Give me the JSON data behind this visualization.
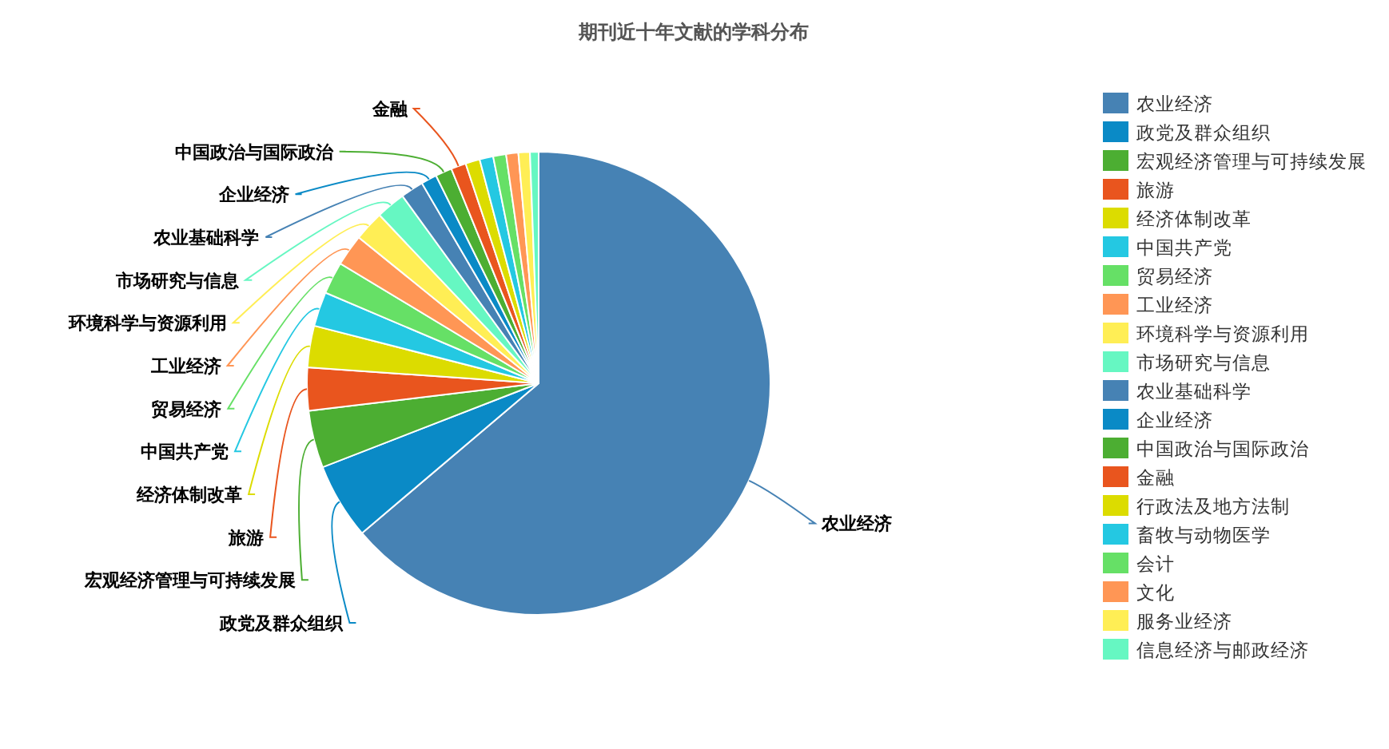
{
  "chart_data": {
    "type": "pie",
    "title": "期刊近十年文献的学科分布",
    "categories": [
      "农业经济",
      "政党及群众组织",
      "宏观经济管理与可持续发展",
      "旅游",
      "经济体制改革",
      "中国共产党",
      "贸易经济",
      "工业经济",
      "环境科学与资源利用",
      "市场研究与信息",
      "农业基础科学",
      "企业经济",
      "中国政治与国际政治",
      "金融",
      "行政法及地方法制",
      "畜牧与动物医学",
      "会计",
      "文化",
      "服务业经济",
      "信息经济与邮政经济"
    ],
    "values": [
      63.8,
      5.3,
      4.0,
      3.0,
      2.9,
      2.4,
      2.25,
      2.2,
      2.1,
      2.05,
      1.6,
      1.1,
      1.15,
      1.05,
      1.0,
      0.95,
      0.9,
      0.85,
      0.8,
      0.6
    ],
    "colors": [
      "#4682b4",
      "#0a8ac6",
      "#4cae32",
      "#e9551e",
      "#dcdc00",
      "#24c8e2",
      "#66e066",
      "#ff9655",
      "#ffee55",
      "#66f7c2",
      "#4682b4",
      "#0a8ac6",
      "#4cae32",
      "#e9551e",
      "#dcdc00",
      "#24c8e2",
      "#66e066",
      "#ff9655",
      "#ffee55",
      "#66f7c2"
    ],
    "legend": "right"
  }
}
